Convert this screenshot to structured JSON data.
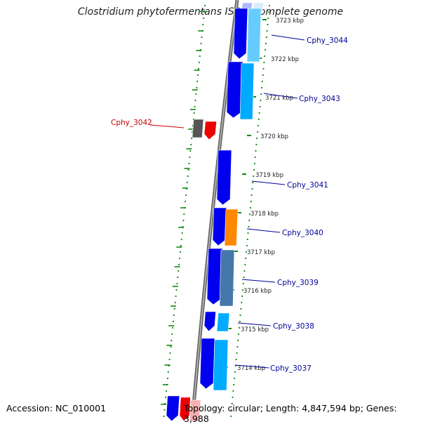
{
  "title": "Clostridium phytofermentans ISDg, complete genome",
  "footer": {
    "accession": "Accession: NC_010001",
    "topology": "Topology: circular; Length: 4,847,594 bp; Genes: 3,988"
  },
  "ticks": [
    "3723 kbp",
    "3722 kbp",
    "3721 kbp",
    "3720 kbp",
    "3719 kbp",
    "3718 kbp",
    "3717 kbp",
    "3716 kbp",
    "3715 kbp",
    "3714 kbp"
  ],
  "genes": [
    "Cphy_3044",
    "Cphy_3043",
    "Cphy_3042",
    "Cphy_3041",
    "Cphy_3040",
    "Cphy_3039",
    "Cphy_3038",
    "Cphy_3037"
  ],
  "colors": {
    "backbone": "#8a8a8a",
    "gene_blue": "#0000ee",
    "gene_cyan": "#00aaff",
    "gene_steel": "#4477aa",
    "gene_orange": "#ff8800",
    "gene_red": "#ee0000",
    "gene_gray": "#555555",
    "label_blue": "#000099",
    "label_red": "#cc0000",
    "dots": "#118811"
  }
}
